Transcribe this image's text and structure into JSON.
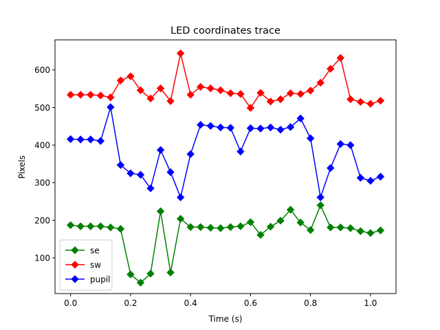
{
  "chart_data": {
    "type": "line",
    "title": "LED coordinates trace",
    "xlabel": "Time (s)",
    "ylabel": "Pixels",
    "xlim": [
      -0.052,
      1.085
    ],
    "ylim": [
      5,
      680
    ],
    "xticks": [
      0.0,
      0.2,
      0.4,
      0.6,
      0.8,
      1.0
    ],
    "xtick_labels": [
      "0.0",
      "0.2",
      "0.4",
      "0.6",
      "0.8",
      "1.0"
    ],
    "yticks": [
      100,
      200,
      300,
      400,
      500,
      600
    ],
    "ytick_labels": [
      "100",
      "200",
      "300",
      "400",
      "500",
      "600"
    ],
    "grid": false,
    "legend_position": "lower-left",
    "marker": "diamond",
    "x": [
      0.0,
      0.0333,
      0.0667,
      0.1,
      0.1333,
      0.1667,
      0.2,
      0.2333,
      0.2667,
      0.3,
      0.3333,
      0.3667,
      0.4,
      0.4333,
      0.4667,
      0.5,
      0.5333,
      0.5667,
      0.6,
      0.6333,
      0.6667,
      0.7,
      0.7333,
      0.7667,
      0.8,
      0.8333,
      0.8667,
      0.9,
      0.9333,
      0.9667,
      1.0,
      1.0333
    ],
    "series": [
      {
        "name": "se",
        "color": "#008000",
        "values": [
          187,
          184,
          184,
          184,
          181,
          177,
          56,
          34,
          58,
          224,
          61,
          204,
          182,
          182,
          180,
          179,
          182,
          184,
          195,
          161,
          183,
          199,
          228,
          194,
          174,
          240,
          181,
          181,
          179,
          171,
          166,
          173
        ]
      },
      {
        "name": "sw",
        "color": "#ff0000",
        "values": [
          534,
          534,
          534,
          532,
          527,
          572,
          583,
          546,
          524,
          551,
          517,
          644,
          534,
          555,
          551,
          546,
          538,
          536,
          499,
          539,
          516,
          522,
          538,
          536,
          545,
          566,
          603,
          632,
          522,
          515,
          510,
          518
        ]
      },
      {
        "name": "pupil",
        "color": "#0000ff",
        "values": [
          416,
          415,
          415,
          411,
          501,
          347,
          325,
          321,
          285,
          387,
          328,
          261,
          376,
          454,
          451,
          447,
          446,
          383,
          445,
          444,
          447,
          441,
          448,
          471,
          418,
          261,
          339,
          403,
          400,
          313,
          305,
          316
        ]
      }
    ]
  }
}
